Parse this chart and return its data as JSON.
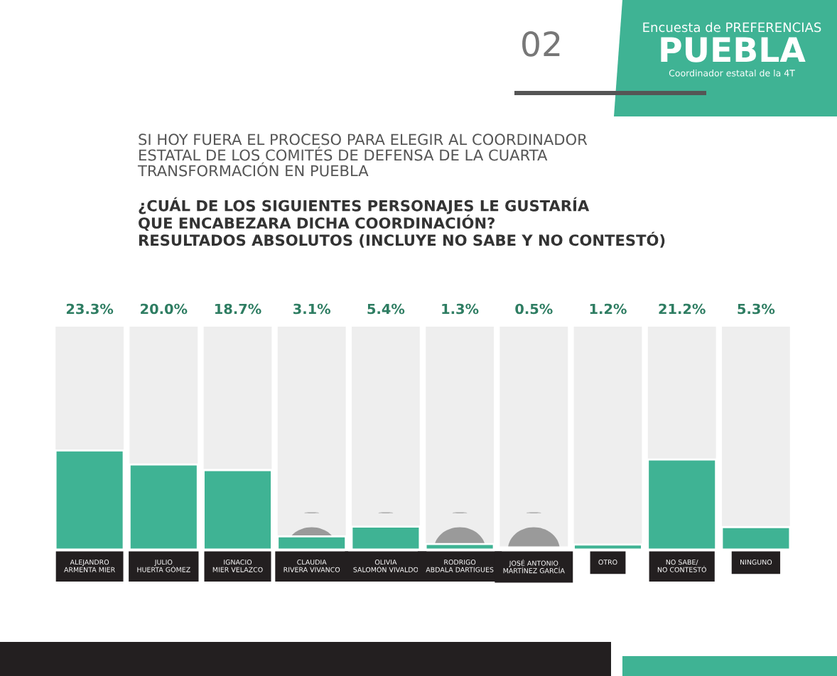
{
  "chart_data": {
    "type": "bar",
    "title": "SI HOY FUERA EL PROCESO PARA ELEGIR AL COORDINADOR\nESTATAL DE LOS COMITÉS DE DEFENSA DE LA CUARTA\nTRANSFORMACIÓN EN PUEBLA",
    "subtitle": "¿CUÁL DE LOS SIGUIENTES PERSONAJES LE GUSTARÍA\nQUE ENCABEZARA DICHA COORDINACIÓN?\nRESULTADOS ABSOLUTOS (INCLUYE NO SABE Y NO CONTESTÓ)",
    "annotations": [
      "02",
      "Encuesta de PREFERENCIAS",
      "PUEBLA",
      "Coordinador estatal de la 4T"
    ],
    "categories": [
      "ALEJANDRO\nARMENTA MIER",
      "JULIO\nHUERTA GÓMEZ",
      "IGNACIO\nMIER VELAZCO",
      "CLAUDIA\nRIVERA VIVANCO",
      "OLIVIA\nSALOMÓN VIVALDO",
      "RODRIGO\nABDALA DARTIGUES",
      "JOSÉ ANTONIO\nMARTÍNEZ GARCÍA",
      "OTRO",
      "NO SABE/\nNO CONTESTÓ",
      "NINGUNO"
    ],
    "values": [
      23.3,
      20.0,
      18.7,
      3.1,
      5.4,
      1.3,
      0.5,
      1.2,
      21.2,
      5.3
    ],
    "value_labels": [
      "23.3%",
      "20.0%",
      "18.7%",
      "3.1%",
      "5.4%",
      "1.3%",
      "0.5%",
      "1.2%",
      "21.2%",
      "5.3%"
    ],
    "color": "#3fb394",
    "tick_labels": "x",
    "grid": false,
    "legend": false
  }
}
